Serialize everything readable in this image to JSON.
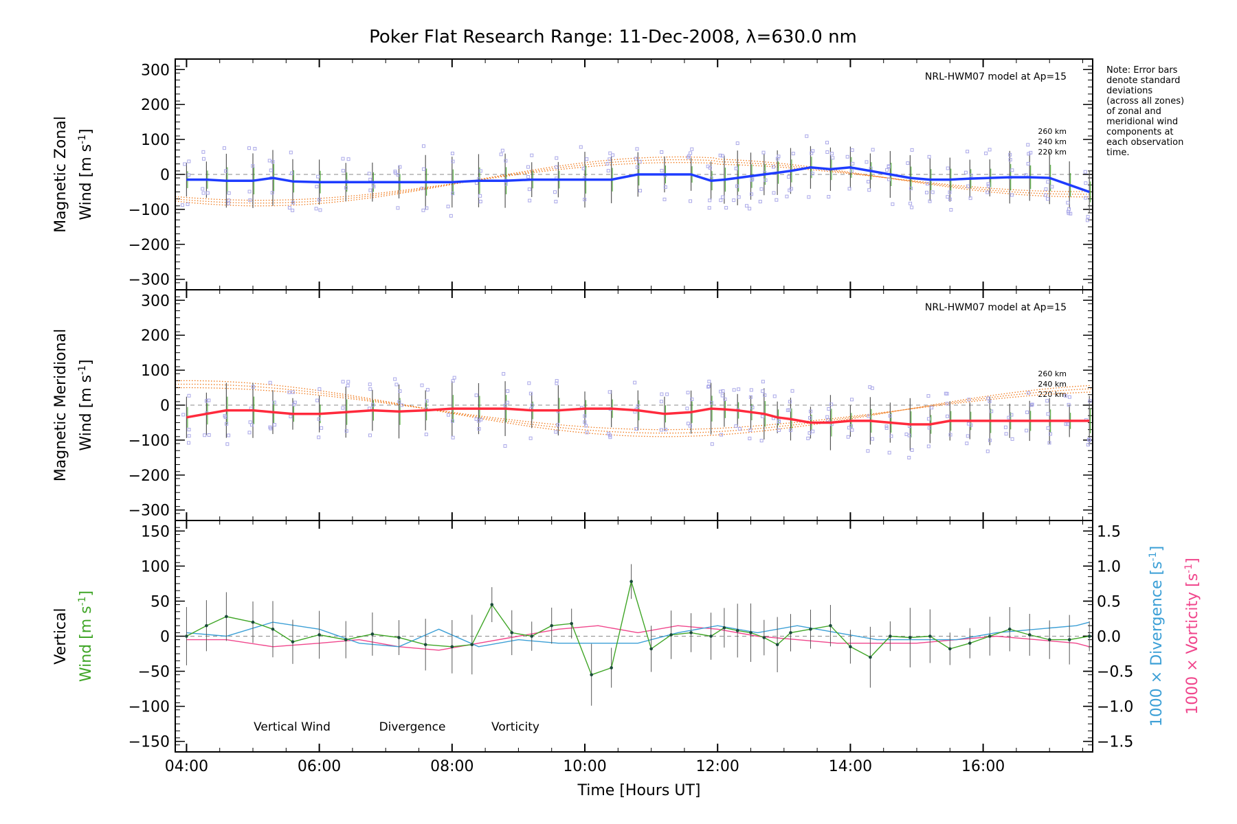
{
  "title": "Poker Flat Research Range: 11-Dec-2008, λ=630.0 nm",
  "note_lines": [
    "Note: Error bars",
    "denote standard",
    "deviations",
    "(across all zones)",
    "of zonal and",
    "meridional wind",
    "components at",
    "each observation",
    "time."
  ],
  "colors": {
    "zonal": "#1e3cff",
    "meridional": "#ff2a3c",
    "vertical": "#3fa526",
    "divergence": "#3b9fd6",
    "vorticity": "#f0468c",
    "model": "#f07818",
    "scatter": "#a9a7e8",
    "errorbar": "#555555"
  },
  "chart_data": [
    {
      "type": "line",
      "panel": "zonal",
      "ylabel_line1": "Magnetic Zonal",
      "ylabel_line2": "Wind [m s",
      "ylabel_sup": "-1",
      "ylabel_tail": "]",
      "ylim": [
        -330,
        330
      ],
      "yticks": [
        -300,
        -200,
        -100,
        0,
        100,
        200,
        300
      ],
      "model_label": "NRL-HWM07 model at Ap=15",
      "model_alt_labels": [
        "260 km",
        "240 km",
        "220 km"
      ],
      "series": [
        {
          "x": [
            4.0,
            4.3,
            4.6,
            5.0,
            5.3,
            5.6,
            6.0,
            6.4,
            6.8,
            7.2,
            7.6,
            8.0,
            8.4,
            8.8,
            9.2,
            9.6,
            10.0,
            10.4,
            10.8,
            11.2,
            11.6,
            11.9,
            12.1,
            12.3,
            12.5,
            12.7,
            12.9,
            13.1,
            13.4,
            13.7,
            14.0,
            14.3,
            14.6,
            14.9,
            15.2,
            15.5,
            15.8,
            16.1,
            16.4,
            16.7,
            17.0,
            17.3,
            17.6
          ],
          "y": [
            -15,
            -15,
            -18,
            -18,
            -10,
            -20,
            -22,
            -22,
            -22,
            -22,
            -22,
            -22,
            -18,
            -18,
            -15,
            -15,
            -15,
            -15,
            0,
            0,
            0,
            -18,
            -15,
            -10,
            -5,
            0,
            5,
            10,
            20,
            15,
            20,
            10,
            0,
            -10,
            -15,
            -15,
            -12,
            -10,
            -8,
            -8,
            -10,
            -30,
            -50
          ]
        }
      ]
    },
    {
      "type": "line",
      "panel": "meridional",
      "ylabel_line1": "Magnetic Meridional",
      "ylabel_line2": "Wind [m s",
      "ylabel_sup": "-1",
      "ylabel_tail": "]",
      "ylim": [
        -330,
        330
      ],
      "yticks": [
        -300,
        -200,
        -100,
        0,
        100,
        200,
        300
      ],
      "model_label": "NRL-HWM07 model at Ap=15",
      "model_alt_labels": [
        "260 km",
        "240 km",
        "220 km"
      ],
      "series": [
        {
          "x": [
            4.0,
            4.3,
            4.6,
            5.0,
            5.3,
            5.6,
            6.0,
            6.4,
            6.8,
            7.2,
            7.6,
            8.0,
            8.4,
            8.8,
            9.2,
            9.6,
            10.0,
            10.4,
            10.8,
            11.2,
            11.6,
            11.9,
            12.1,
            12.3,
            12.5,
            12.7,
            12.9,
            13.1,
            13.4,
            13.7,
            14.0,
            14.3,
            14.6,
            14.9,
            15.2,
            15.5,
            15.8,
            16.1,
            16.4,
            16.7,
            17.0,
            17.3,
            17.6
          ],
          "y": [
            -35,
            -25,
            -15,
            -15,
            -20,
            -25,
            -25,
            -20,
            -15,
            -18,
            -15,
            -10,
            -10,
            -10,
            -15,
            -15,
            -10,
            -10,
            -15,
            -25,
            -20,
            -10,
            -12,
            -15,
            -20,
            -25,
            -35,
            -40,
            -50,
            -50,
            -45,
            -45,
            -50,
            -55,
            -55,
            -45,
            -45,
            -45,
            -45,
            -45,
            -45,
            -45,
            -45
          ]
        }
      ]
    },
    {
      "type": "line",
      "panel": "vertical",
      "ylabel_line1": "Vertical",
      "ylabel_line2": "Wind [m s",
      "ylabel_sup": "-1",
      "ylabel_tail": "]",
      "ylim": [
        -165,
        165
      ],
      "yticks": [
        -150,
        -100,
        -50,
        0,
        50,
        100,
        150
      ],
      "y2lim": [
        -1.65,
        1.65
      ],
      "y2ticks": [
        -1.5,
        -1.0,
        -0.5,
        0.0,
        0.5,
        1.0,
        1.5
      ],
      "y2label_div": "1000 × Divergence [s",
      "y2label_vort": "1000 × Vorticity [s",
      "y2label_sup": "-1",
      "y2label_tail": "]",
      "legend": [
        "Vertical Wind",
        "Divergence",
        "Vorticity"
      ],
      "series": [
        {
          "name": "Vertical Wind",
          "x": [
            4.0,
            4.3,
            4.6,
            5.0,
            5.3,
            5.6,
            6.0,
            6.4,
            6.8,
            7.2,
            7.6,
            8.0,
            8.3,
            8.6,
            8.9,
            9.2,
            9.5,
            9.8,
            10.1,
            10.4,
            10.7,
            11.0,
            11.3,
            11.6,
            11.9,
            12.1,
            12.3,
            12.5,
            12.7,
            12.9,
            13.1,
            13.4,
            13.7,
            14.0,
            14.3,
            14.6,
            14.9,
            15.2,
            15.5,
            15.8,
            16.1,
            16.4,
            16.7,
            17.0,
            17.3,
            17.6
          ],
          "y": [
            0,
            15,
            28,
            20,
            10,
            -8,
            2,
            -5,
            3,
            -2,
            -12,
            -15,
            -12,
            45,
            5,
            0,
            15,
            18,
            -55,
            -45,
            78,
            -18,
            2,
            5,
            0,
            12,
            8,
            5,
            -2,
            -12,
            5,
            10,
            15,
            -15,
            -30,
            0,
            -2,
            0,
            -18,
            -10,
            0,
            10,
            2,
            -5,
            -5,
            0
          ]
        },
        {
          "name": "Divergence",
          "x": [
            4.0,
            4.6,
            5.3,
            6.0,
            6.6,
            7.2,
            7.8,
            8.4,
            9.0,
            9.6,
            10.2,
            10.8,
            11.4,
            12.0,
            12.6,
            13.2,
            13.8,
            14.4,
            15.0,
            15.6,
            16.2,
            16.8,
            17.4,
            17.6
          ],
          "y": [
            0.05,
            0.0,
            0.2,
            0.1,
            -0.1,
            -0.15,
            0.1,
            -0.15,
            -0.05,
            -0.1,
            -0.1,
            -0.1,
            0.05,
            0.15,
            0.05,
            0.15,
            0.05,
            -0.05,
            -0.05,
            -0.05,
            0.05,
            0.1,
            0.15,
            0.2
          ]
        },
        {
          "name": "Vorticity",
          "x": [
            4.0,
            4.6,
            5.3,
            6.0,
            6.6,
            7.2,
            7.8,
            8.4,
            9.0,
            9.6,
            10.2,
            10.8,
            11.4,
            12.0,
            12.6,
            13.2,
            13.8,
            14.4,
            15.0,
            15.6,
            16.2,
            16.8,
            17.4,
            17.6
          ],
          "y": [
            -0.05,
            -0.05,
            -0.15,
            -0.1,
            -0.05,
            -0.15,
            -0.2,
            -0.1,
            0.0,
            0.1,
            0.15,
            0.05,
            0.15,
            0.1,
            0.0,
            -0.05,
            -0.1,
            -0.1,
            -0.1,
            -0.05,
            0.0,
            -0.05,
            -0.1,
            -0.15
          ]
        }
      ]
    }
  ],
  "x_axis": {
    "label": "Time [Hours UT]",
    "xlim": [
      3.83,
      17.65
    ],
    "ticks": [
      4,
      6,
      8,
      10,
      12,
      14,
      16
    ],
    "tick_labels": [
      "04:00",
      "06:00",
      "08:00",
      "10:00",
      "12:00",
      "14:00",
      "16:00"
    ]
  }
}
